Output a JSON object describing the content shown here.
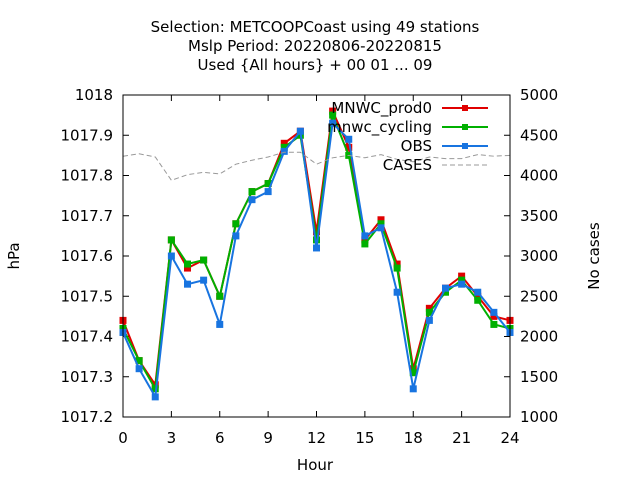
{
  "chart_data": {
    "type": "line",
    "title_lines": [
      "Selection: METCOOPCoast using    49 stations",
      "Mslp   Period: 20220806-20220815",
      "Used {All hours} + 00 01 ... 09"
    ],
    "xlabel": "Hour",
    "ylabel": "hPa",
    "y2label": "No cases",
    "xlim": [
      0,
      24
    ],
    "ylim": [
      1017.2,
      1018.0
    ],
    "y2lim": [
      1000,
      5000
    ],
    "x_ticks": [
      0,
      3,
      6,
      9,
      12,
      15,
      18,
      21,
      24
    ],
    "y_ticks": [
      "1017.2",
      "1017.3",
      "1017.4",
      "1017.5",
      "1017.6",
      "1017.7",
      "1017.8",
      "1017.9",
      "1018"
    ],
    "y2_ticks": [
      "1000",
      "1500",
      "2000",
      "2500",
      "3000",
      "3500",
      "4000",
      "4500",
      "5000"
    ],
    "legend_position": "top-right",
    "x": [
      0,
      1,
      2,
      3,
      4,
      5,
      6,
      7,
      8,
      9,
      10,
      11,
      12,
      13,
      14,
      15,
      16,
      17,
      18,
      19,
      20,
      21,
      22,
      23,
      24
    ],
    "series": [
      {
        "name": "MNWC_prod0",
        "color": "#e00000",
        "axis": "y1",
        "marker": "square",
        "values": [
          1017.44,
          1017.34,
          1017.28,
          1017.64,
          1017.57,
          1017.59,
          1017.5,
          1017.68,
          1017.76,
          1017.78,
          1017.88,
          1017.91,
          1017.66,
          1017.96,
          1017.87,
          1017.64,
          1017.69,
          1017.58,
          1017.32,
          1017.47,
          1017.52,
          1017.55,
          1017.5,
          1017.45,
          1017.44
        ]
      },
      {
        "name": "mnwc_cycling",
        "color": "#00b000",
        "axis": "y1",
        "marker": "square",
        "values": [
          1017.42,
          1017.34,
          1017.27,
          1017.64,
          1017.58,
          1017.59,
          1017.5,
          1017.68,
          1017.76,
          1017.78,
          1017.87,
          1017.9,
          1017.64,
          1017.95,
          1017.85,
          1017.63,
          1017.68,
          1017.57,
          1017.31,
          1017.46,
          1017.51,
          1017.54,
          1017.49,
          1017.43,
          1017.42
        ]
      },
      {
        "name": "OBS",
        "color": "#1874e0",
        "axis": "y1",
        "marker": "square",
        "values": [
          1017.41,
          1017.32,
          1017.25,
          1017.6,
          1017.53,
          1017.54,
          1017.43,
          1017.65,
          1017.74,
          1017.76,
          1017.86,
          1017.91,
          1017.62,
          1017.93,
          1017.89,
          1017.65,
          1017.67,
          1017.51,
          1017.27,
          1017.44,
          1017.52,
          1017.53,
          1017.51,
          1017.46,
          1017.41
        ]
      },
      {
        "name": "CASES",
        "color": "#999999",
        "axis": "y2",
        "dashed": true,
        "x": [
          0,
          1,
          2,
          3,
          4,
          5,
          6,
          7,
          8,
          9,
          10,
          11,
          12,
          13,
          14,
          15,
          16,
          17,
          18,
          19,
          20,
          21,
          22,
          23,
          24
        ],
        "values": [
          4240,
          4270,
          4230,
          3940,
          4010,
          4040,
          4020,
          4140,
          4190,
          4230,
          4290,
          4290,
          4140,
          4220,
          4250,
          4220,
          4260,
          4200,
          4170,
          4230,
          4210,
          4210,
          4260,
          4240,
          4250
        ]
      }
    ]
  }
}
